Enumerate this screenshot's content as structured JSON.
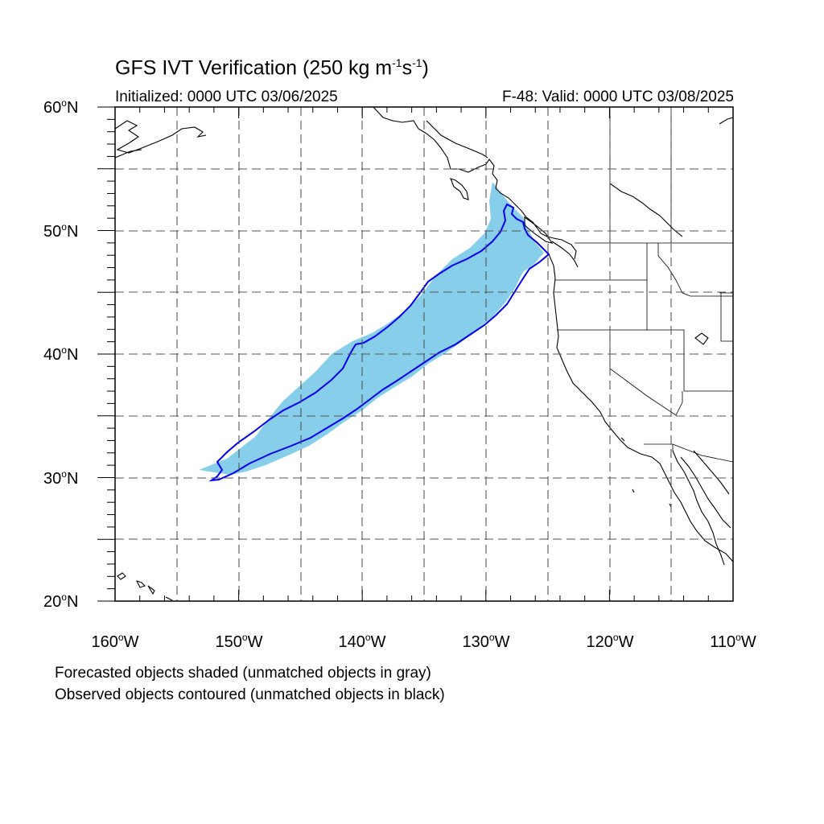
{
  "title": {
    "main": "GFS IVT Verification (250 kg m",
    "exp1": "-1",
    "mid": "s",
    "exp2": "-1",
    "end": ")"
  },
  "subtitle_left": "Initialized: 0000 UTC 03/06/2025",
  "subtitle_right": "F-48: Valid: 0000 UTC 03/08/2025",
  "map": {
    "lon_range": [
      -160,
      -110
    ],
    "lat_range": [
      20,
      60
    ],
    "gridlines": "dashed every 5 degrees",
    "forecast_fill_color": "#87ceeb",
    "observed_contour_color": "#0000ee",
    "coastline_color": "#000000"
  },
  "lat_labels": [
    {
      "num": "60",
      "suffix": "N"
    },
    {
      "num": "50",
      "suffix": "N"
    },
    {
      "num": "40",
      "suffix": "N"
    },
    {
      "num": "30",
      "suffix": "N"
    },
    {
      "num": "20",
      "suffix": "N"
    }
  ],
  "lon_labels": [
    {
      "num": "160",
      "suffix": "W"
    },
    {
      "num": "150",
      "suffix": "W"
    },
    {
      "num": "140",
      "suffix": "W"
    },
    {
      "num": "130",
      "suffix": "W"
    },
    {
      "num": "120",
      "suffix": "W"
    },
    {
      "num": "110",
      "suffix": "W"
    }
  ],
  "notes": [
    "Forecasted objects shaded (unmatched objects in gray)",
    "Observed objects contoured (unmatched objects in black)"
  ]
}
